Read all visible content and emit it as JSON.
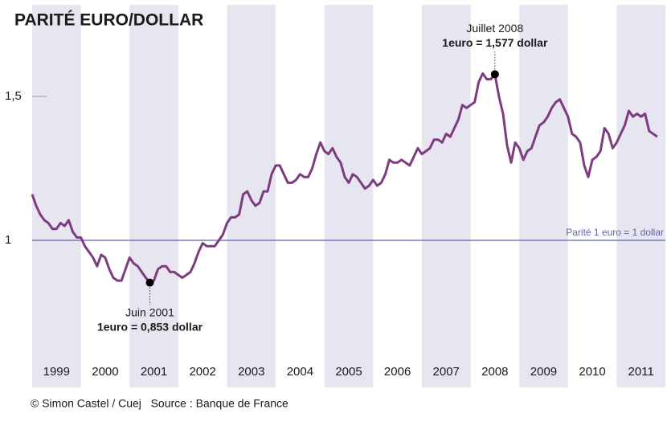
{
  "chart_data": {
    "type": "line",
    "title": "PARITÉ EURO/DOLLAR",
    "credit": "© Simon Castel / Cuej   Source : Banque de France",
    "xlim": [
      1999,
      2012
    ],
    "xticks": [
      {
        "value": 1999.5,
        "label": "1999"
      },
      {
        "value": 2000.5,
        "label": "2000"
      },
      {
        "value": 2001.5,
        "label": "2001"
      },
      {
        "value": 2002.5,
        "label": "2002"
      },
      {
        "value": 2003.5,
        "label": "2003"
      },
      {
        "value": 2004.5,
        "label": "2004"
      },
      {
        "value": 2005.5,
        "label": "2005"
      },
      {
        "value": 2006.5,
        "label": "2006"
      },
      {
        "value": 2007.5,
        "label": "2007"
      },
      {
        "value": 2008.5,
        "label": "2008"
      },
      {
        "value": 2009.5,
        "label": "2009"
      },
      {
        "value": 2010.5,
        "label": "2010"
      },
      {
        "value": 2011.5,
        "label": "2011"
      }
    ],
    "ylim": [
      0.5,
      1.8
    ],
    "yticks": [
      1,
      {
        "value": 1.5,
        "label": "1,5"
      }
    ],
    "reference": {
      "value": 1,
      "label": "Parité 1 euro = 1 dollar",
      "color": "#5a64ad"
    },
    "annotations": [
      {
        "text": "Juin 2001",
        "value_label": "1euro = 0,853 dollar",
        "x": 2001.417,
        "y": 0.853
      },
      {
        "text": "Juillet 2008",
        "value_label": "1euro = 1,577 dollar",
        "x": 2008.5,
        "y": 1.577
      }
    ],
    "series": [
      {
        "color": "#7d3c7f",
        "x": [
          1999,
          1999.083,
          1999.167,
          1999.25,
          1999.333,
          1999.417,
          1999.5,
          1999.583,
          1999.667,
          1999.75,
          1999.833,
          1999.917,
          2000,
          2000.083,
          2000.167,
          2000.25,
          2000.333,
          2000.417,
          2000.5,
          2000.583,
          2000.667,
          2000.75,
          2000.833,
          2000.917,
          2001,
          2001.083,
          2001.167,
          2001.25,
          2001.333,
          2001.417,
          2001.5,
          2001.583,
          2001.667,
          2001.75,
          2001.833,
          2001.917,
          2002,
          2002.083,
          2002.167,
          2002.25,
          2002.333,
          2002.417,
          2002.5,
          2002.583,
          2002.667,
          2002.75,
          2002.833,
          2002.917,
          2003,
          2003.083,
          2003.167,
          2003.25,
          2003.333,
          2003.417,
          2003.5,
          2003.583,
          2003.667,
          2003.75,
          2003.833,
          2003.917,
          2004,
          2004.083,
          2004.167,
          2004.25,
          2004.333,
          2004.417,
          2004.5,
          2004.583,
          2004.667,
          2004.75,
          2004.833,
          2004.917,
          2005,
          2005.083,
          2005.167,
          2005.25,
          2005.333,
          2005.417,
          2005.5,
          2005.583,
          2005.667,
          2005.75,
          2005.833,
          2005.917,
          2006,
          2006.083,
          2006.167,
          2006.25,
          2006.333,
          2006.417,
          2006.5,
          2006.583,
          2006.667,
          2006.75,
          2006.833,
          2006.917,
          2007,
          2007.083,
          2007.167,
          2007.25,
          2007.333,
          2007.417,
          2007.5,
          2007.583,
          2007.667,
          2007.75,
          2007.833,
          2007.917,
          2008,
          2008.083,
          2008.167,
          2008.25,
          2008.333,
          2008.417,
          2008.5,
          2008.583,
          2008.667,
          2008.75,
          2008.833,
          2008.917,
          2009,
          2009.083,
          2009.167,
          2009.25,
          2009.333,
          2009.417,
          2009.5,
          2009.583,
          2009.667,
          2009.75,
          2009.833,
          2009.917,
          2010,
          2010.083,
          2010.167,
          2010.25,
          2010.333,
          2010.417,
          2010.5,
          2010.583,
          2010.667,
          2010.75,
          2010.833,
          2010.917,
          2011,
          2011.083,
          2011.167,
          2011.25,
          2011.333,
          2011.417,
          2011.5,
          2011.583,
          2011.667,
          2011.75,
          2011.833
        ],
        "values": [
          1.16,
          1.12,
          1.09,
          1.07,
          1.06,
          1.04,
          1.04,
          1.06,
          1.05,
          1.07,
          1.03,
          1.01,
          1.01,
          0.98,
          0.96,
          0.94,
          0.91,
          0.95,
          0.94,
          0.9,
          0.87,
          0.86,
          0.86,
          0.9,
          0.94,
          0.92,
          0.91,
          0.89,
          0.87,
          0.853,
          0.86,
          0.9,
          0.91,
          0.91,
          0.89,
          0.89,
          0.88,
          0.87,
          0.88,
          0.89,
          0.92,
          0.96,
          0.99,
          0.98,
          0.98,
          0.98,
          1.0,
          1.02,
          1.06,
          1.08,
          1.08,
          1.09,
          1.16,
          1.17,
          1.14,
          1.12,
          1.13,
          1.17,
          1.17,
          1.23,
          1.26,
          1.26,
          1.23,
          1.2,
          1.2,
          1.21,
          1.23,
          1.22,
          1.22,
          1.25,
          1.3,
          1.34,
          1.31,
          1.3,
          1.32,
          1.29,
          1.27,
          1.22,
          1.2,
          1.23,
          1.22,
          1.2,
          1.18,
          1.19,
          1.21,
          1.19,
          1.2,
          1.23,
          1.28,
          1.27,
          1.27,
          1.28,
          1.27,
          1.26,
          1.29,
          1.32,
          1.3,
          1.31,
          1.32,
          1.35,
          1.35,
          1.34,
          1.37,
          1.36,
          1.39,
          1.42,
          1.47,
          1.46,
          1.47,
          1.48,
          1.55,
          1.58,
          1.56,
          1.56,
          1.577,
          1.5,
          1.44,
          1.33,
          1.27,
          1.34,
          1.32,
          1.28,
          1.31,
          1.32,
          1.36,
          1.4,
          1.41,
          1.43,
          1.46,
          1.48,
          1.49,
          1.46,
          1.43,
          1.37,
          1.36,
          1.34,
          1.26,
          1.22,
          1.28,
          1.29,
          1.31,
          1.39,
          1.37,
          1.32,
          1.34,
          1.37,
          1.4,
          1.45,
          1.43,
          1.44,
          1.43,
          1.44,
          1.38,
          1.37,
          1.36
        ]
      }
    ],
    "band_color": "#e7e5f0"
  }
}
